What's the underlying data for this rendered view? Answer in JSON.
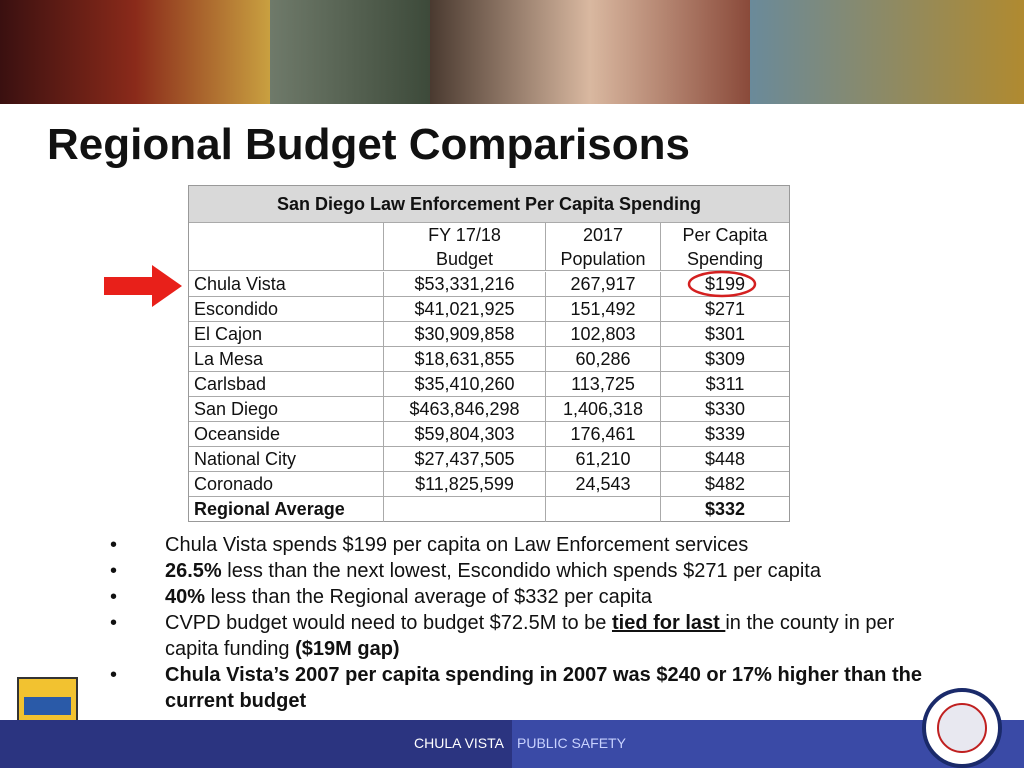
{
  "slide": {
    "title": "Regional Budget Comparisons",
    "table": {
      "title": "San Diego Law Enforcement Per Capita Spending",
      "headers": [
        [
          "FY 17/18",
          "Budget"
        ],
        [
          "2017",
          "Population"
        ],
        [
          "Per Capita",
          "Spending"
        ]
      ],
      "rows": [
        [
          "Chula Vista",
          "$53,331,216",
          "267,917",
          "$199"
        ],
        [
          "Escondido",
          "$41,021,925",
          "151,492",
          "$271"
        ],
        [
          "El Cajon",
          "$30,909,858",
          "102,803",
          "$301"
        ],
        [
          "La Mesa",
          "$18,631,855",
          "60,286",
          "$309"
        ],
        [
          "Carlsbad",
          "$35,410,260",
          "113,725",
          "$311"
        ],
        [
          "San Diego",
          "$463,846,298",
          "1,406,318",
          "$330"
        ],
        [
          "Oceanside",
          "$59,804,303",
          "176,461",
          "$339"
        ],
        [
          "National City",
          "$27,437,505",
          "61,210",
          "$448"
        ],
        [
          "Coronado",
          "$11,825,599",
          "24,543",
          "$482"
        ]
      ],
      "average": {
        "label": "Regional Average",
        "value": "$332"
      }
    },
    "bullets": [
      [
        {
          "text": "Chula Vista spends $199 per capita on Law Enforcement services"
        }
      ],
      [
        {
          "text": "26.5%",
          "bold": true
        },
        {
          "text": " less than the next lowest, Escondido which spends $271 per capita"
        }
      ],
      [
        {
          "text": "40%",
          "bold": true
        },
        {
          "text": " less than the Regional average of $332 per capita"
        }
      ],
      [
        {
          "text": "CVPD budget would need to budget $72.5M to be "
        },
        {
          "text": "tied for last ",
          "bold": true,
          "underline": true
        },
        {
          "text": "in the county in per capita funding "
        },
        {
          "text": "($19M gap)",
          "bold": true
        }
      ],
      [
        {
          "text": "Chula Vista’s 2007 per capita spending in 2007 was $240 or 17% higher than the current budget",
          "bold": true
        }
      ]
    ],
    "footer": {
      "left": "CHULA VISTA",
      "right": "PUBLIC SAFETY"
    }
  }
}
